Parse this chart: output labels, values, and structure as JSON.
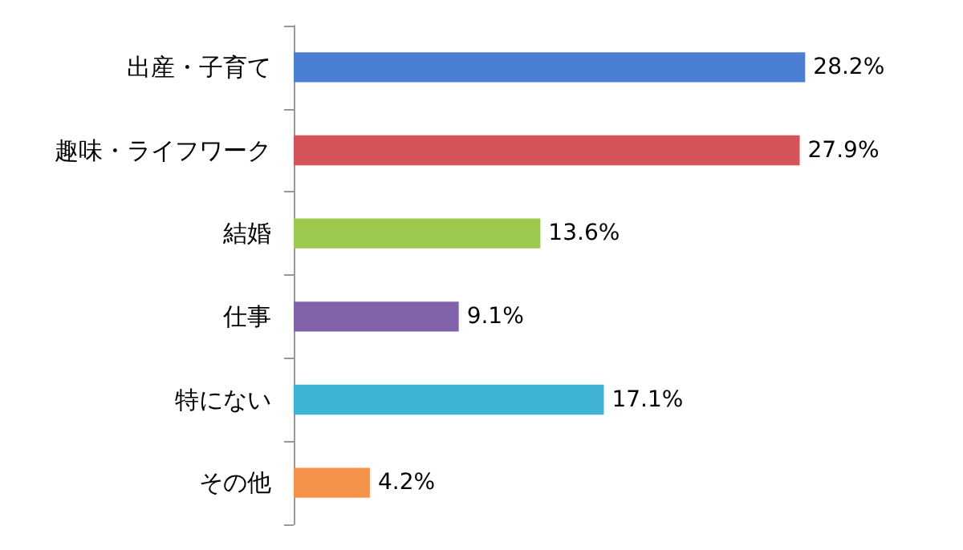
{
  "chart_data": {
    "type": "bar",
    "orientation": "horizontal",
    "categories": [
      "出産・子育て",
      "趣味・ライフワーク",
      "結婚",
      "仕事",
      "特にない",
      "その他"
    ],
    "values": [
      28.2,
      27.9,
      13.6,
      9.1,
      17.1,
      4.2
    ],
    "value_labels": [
      "28.2%",
      "27.9%",
      "13.6%",
      "9.1%",
      "17.1%",
      "4.2%"
    ],
    "colors": [
      "#4a7fd4",
      "#d4545a",
      "#9dc94e",
      "#8063a8",
      "#3fb3d6",
      "#f5924a"
    ]
  }
}
